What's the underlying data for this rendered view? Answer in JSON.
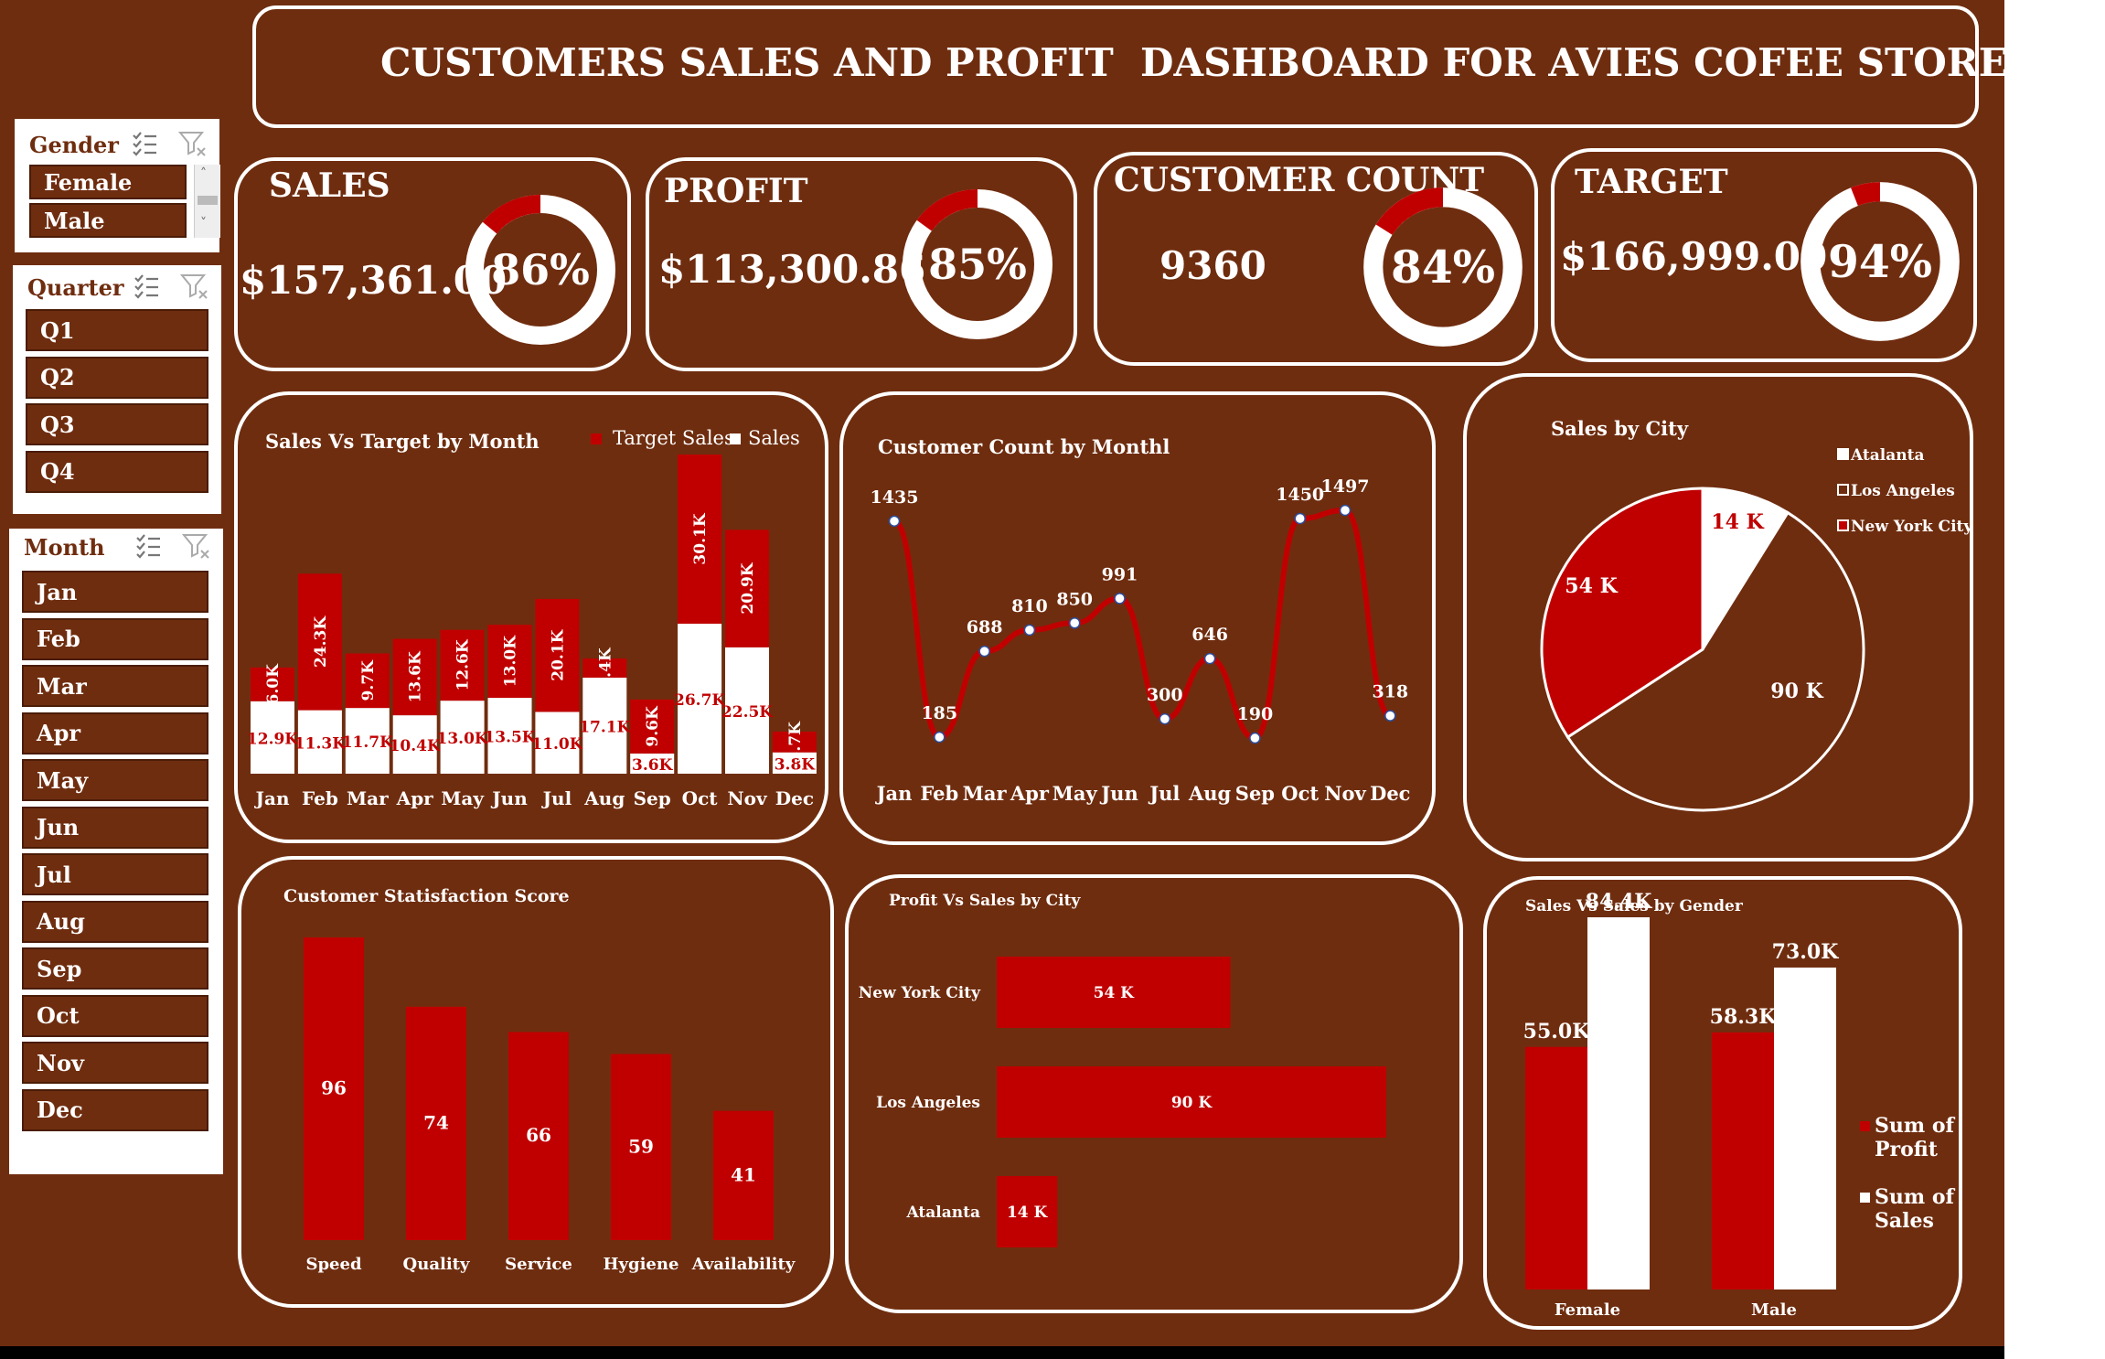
{
  "header": {
    "title": "CUSTOMERS SALES AND PROFIT  DASHBOARD FOR AVIES COFEE STORES"
  },
  "colors": {
    "background": "#6f2d0f",
    "accent": "#c00000",
    "white": "#ffffff"
  },
  "slicers": {
    "gender": {
      "label": "Gender",
      "items": [
        "Female",
        "Male"
      ]
    },
    "quarter": {
      "label": "Quarter",
      "items": [
        "Q1",
        "Q2",
        "Q3",
        "Q4"
      ]
    },
    "month": {
      "label": "Month",
      "items": [
        "Jan",
        "Feb",
        "Mar",
        "Apr",
        "May",
        "Jun",
        "Jul",
        "Aug",
        "Sep",
        "Oct",
        "Nov",
        "Dec"
      ]
    }
  },
  "kpis": [
    {
      "label": "SALES",
      "value": "$157,361.00",
      "percent": 86,
      "percent_text": "86%"
    },
    {
      "label": "PROFIT",
      "value": "$113,300.86",
      "percent": 85,
      "percent_text": "85%"
    },
    {
      "label": "CUSTOMER COUNT",
      "value": "9360",
      "percent": 84,
      "percent_text": "84%"
    },
    {
      "label": "TARGET",
      "value": "$166,999.00",
      "percent": 94,
      "percent_text": "94%"
    }
  ],
  "chart_data": [
    {
      "type": "bar",
      "subtype": "stacked",
      "title": "Sales Vs Target by Month",
      "categories": [
        "Jan",
        "Feb",
        "Mar",
        "Apr",
        "May",
        "Jun",
        "Jul",
        "Aug",
        "Sep",
        "Oct",
        "Nov",
        "Dec"
      ],
      "series": [
        {
          "name": "Sales",
          "color": "#ffffff",
          "values": [
            12.9,
            11.3,
            11.7,
            10.4,
            13.0,
            13.5,
            11.0,
            17.1,
            3.6,
            26.7,
            22.5,
            3.8
          ],
          "labels": [
            "12.9K",
            "11.3K",
            "11.7K",
            "10.4K",
            "13.0K",
            "13.5K",
            "11.0K",
            "17.1K",
            "3.6K",
            "26.7K",
            "22.5K",
            "3.8K"
          ]
        },
        {
          "name": "Target Sales",
          "color": "#c00000",
          "values": [
            6.0,
            24.3,
            9.7,
            13.6,
            12.6,
            13.0,
            20.1,
            3.4,
            9.6,
            30.1,
            20.9,
            3.7
          ],
          "labels": [
            "6.0K",
            "24.3K",
            "9.7K",
            "13.6K",
            "12.6K",
            "13.0K",
            "20.1K",
            "3.4K",
            "9.6K",
            "30.1K",
            "20.9K",
            "3.7K"
          ]
        }
      ],
      "legend": [
        "Target Sales",
        "Sales"
      ],
      "legend_position": "top-right"
    },
    {
      "type": "line",
      "title": "Customer Count by Monthl",
      "categories": [
        "Jan",
        "Feb",
        "Mar",
        "Apr",
        "May",
        "Jun",
        "Jul",
        "Aug",
        "Sep",
        "Oct",
        "Nov",
        "Dec"
      ],
      "values": [
        1435,
        185,
        688,
        810,
        850,
        991,
        300,
        646,
        190,
        1450,
        1497,
        318
      ]
    },
    {
      "type": "pie",
      "title": "Sales by City",
      "categories": [
        "Atalanta",
        "Los Angeles",
        "New York City"
      ],
      "values": [
        14,
        90,
        54
      ],
      "labels": [
        "14 K",
        "90 K",
        "54 K"
      ],
      "colors": [
        "#ffffff",
        "#6f2d0f",
        "#c00000"
      ],
      "legend_position": "top-right"
    },
    {
      "type": "bar",
      "title": "Customer Statisfaction Score",
      "categories": [
        "Speed",
        "Quality",
        "Service",
        "Hygiene",
        "Availability"
      ],
      "values": [
        96,
        74,
        66,
        59,
        41
      ]
    },
    {
      "type": "bar",
      "orientation": "horizontal",
      "title": "Profit Vs Sales by City",
      "categories": [
        "New York City",
        "Los Angeles",
        "Atalanta"
      ],
      "values": [
        54,
        90,
        14
      ],
      "labels": [
        "54 K",
        "90 K",
        "14 K"
      ]
    },
    {
      "type": "bar",
      "title": "Sales Vs Sales by Gender",
      "categories": [
        "Female",
        "Male"
      ],
      "series": [
        {
          "name": "Sum of Profit",
          "color": "#c00000",
          "values": [
            55.0,
            58.3
          ],
          "labels": [
            "55.0K",
            "58.3K"
          ]
        },
        {
          "name": "Sum of Sales",
          "color": "#ffffff",
          "values": [
            84.4,
            73.0
          ],
          "labels": [
            "84.4K",
            "73.0K"
          ]
        }
      ],
      "legend_lines": [
        [
          "Sum of",
          "Profit"
        ],
        [
          "Sum of",
          "Sales"
        ]
      ],
      "legend_position": "right"
    }
  ]
}
